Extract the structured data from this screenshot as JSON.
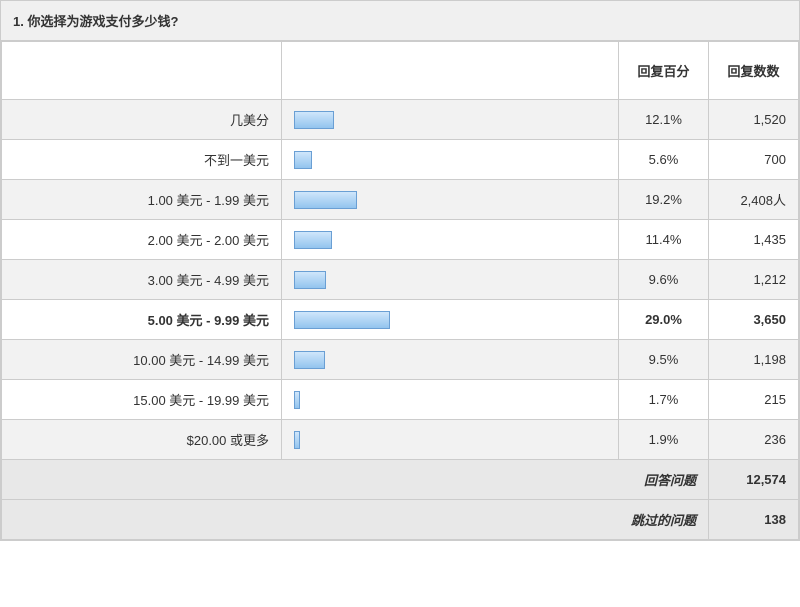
{
  "question": {
    "number": "1.",
    "text": "你选择为游戏支付多少钱?"
  },
  "columns": {
    "label": "",
    "bar": "",
    "percent": "回复百分",
    "count": "回复数数"
  },
  "chart": {
    "type": "bar",
    "orientation": "horizontal",
    "max_percent": 100,
    "bar_scale": 3.3,
    "bar_fill_top": "#cfe6fb",
    "bar_fill_bottom": "#93c4ee",
    "bar_border": "#6a9fd4",
    "row_alt_bg": "#f2f2f2",
    "row_bg": "#ffffff",
    "header_bg": "#f0f0f0",
    "border_color": "#cccccc",
    "text_color": "#333333",
    "font_size": 13
  },
  "rows": [
    {
      "label": "几美分",
      "percent": 12.1,
      "percent_text": "12.1%",
      "count": "1,520",
      "bold": false
    },
    {
      "label": "不到一美元",
      "percent": 5.6,
      "percent_text": "5.6%",
      "count": "700",
      "bold": false
    },
    {
      "label": "1.00 美元 - 1.99 美元",
      "percent": 19.2,
      "percent_text": "19.2%",
      "count": "2,408人",
      "bold": false
    },
    {
      "label": "2.00 美元 - 2.00 美元",
      "percent": 11.4,
      "percent_text": "11.4%",
      "count": "1,435",
      "bold": false
    },
    {
      "label": "3.00 美元 - 4.99 美元",
      "percent": 9.6,
      "percent_text": "9.6%",
      "count": "1,212",
      "bold": false
    },
    {
      "label": "5.00 美元 - 9.99 美元",
      "percent": 29.0,
      "percent_text": "29.0%",
      "count": "3,650",
      "bold": true
    },
    {
      "label": "10.00 美元 - 14.99 美元",
      "percent": 9.5,
      "percent_text": "9.5%",
      "count": "1,198",
      "bold": false
    },
    {
      "label": "15.00 美元 - 19.99 美元",
      "percent": 1.7,
      "percent_text": "1.7%",
      "count": "215",
      "bold": false
    },
    {
      "label": "$20.00 或更多",
      "percent": 1.9,
      "percent_text": "1.9%",
      "count": "236",
      "bold": false
    }
  ],
  "summary": [
    {
      "label": "回答问题",
      "value": "12,574"
    },
    {
      "label": "跳过的问题",
      "value": "138"
    }
  ]
}
